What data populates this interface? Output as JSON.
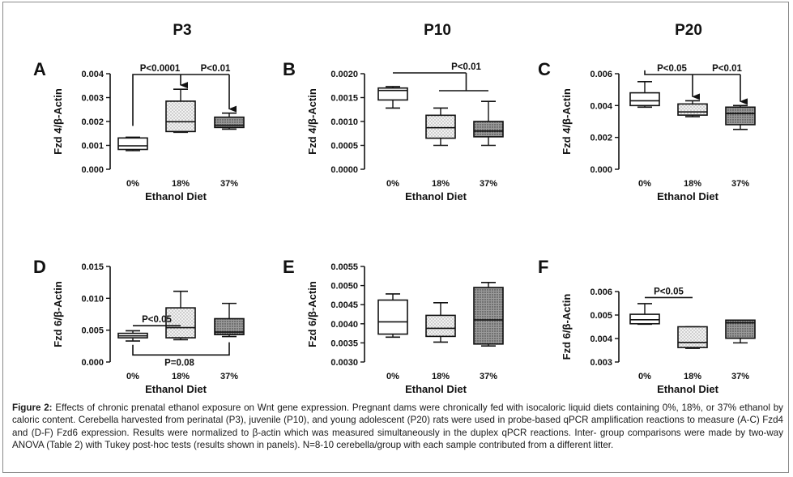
{
  "figure": {
    "column_titles": [
      "P3",
      "P10",
      "P20"
    ],
    "caption_label": "Figure 2:",
    "caption_text": " Effects of chronic prenatal ethanol exposure on Wnt gene expression. Pregnant dams were chronically fed with isocaloric liquid diets containing 0%, 18%, or 37% ethanol by caloric content. Cerebella harvested from perinatal (P3), juvenile (P10), and young adolescent (P20) rats were used in probe-based qPCR amplification reactions to measure (A-C) Fzd4 and (D-F) Fzd6 expression. Results were normalized to β-actin which was measured simultaneously in the duplex qPCR reactions. Inter- group comparisons were made by two-way ANOVA (Table 2) with Tukey post-hoc tests (results shown in panels). N=8-10 cerebella/group with each sample contributed from a different litter."
  },
  "colors": {
    "box_0": "#ffffff",
    "box_18": "#dcdcdc",
    "box_37": "#8e8e8e",
    "ink": "#111111"
  },
  "chart_data": [
    {
      "panel": "A",
      "type": "box",
      "xlabel": "Ethanol Diet",
      "ylabel": "Fzd 4/β-Actin",
      "categories": [
        "0%",
        "18%",
        "37%"
      ],
      "ylim": [
        0,
        0.004
      ],
      "yticks": [
        "0.000",
        "0.001",
        "0.002",
        "0.003",
        "0.004"
      ],
      "boxes": [
        {
          "min": 0.00078,
          "q1": 0.00083,
          "median": 0.00098,
          "q3": 0.00131,
          "max": 0.00134
        },
        {
          "min": 0.00155,
          "q1": 0.00158,
          "median": 0.00199,
          "q3": 0.00285,
          "max": 0.00335
        },
        {
          "min": 0.00168,
          "q1": 0.00175,
          "median": 0.00184,
          "q3": 0.00218,
          "max": 0.00235
        }
      ],
      "annotations": [
        {
          "text": "P<0.0001",
          "type": "bracket-arrows",
          "from": 0,
          "to": [
            1,
            2
          ]
        },
        {
          "text": "P<0.01",
          "type": "label",
          "at": 2
        }
      ]
    },
    {
      "panel": "B",
      "type": "box",
      "xlabel": "Ethanol Diet",
      "ylabel": "Fzd 4/β-Actin",
      "categories": [
        "0%",
        "18%",
        "37%"
      ],
      "ylim": [
        0,
        0.002
      ],
      "yticks": [
        "0.0000",
        "0.0005",
        "0.0010",
        "0.0015",
        "0.0020"
      ],
      "boxes": [
        {
          "min": 0.00128,
          "q1": 0.00145,
          "median": 0.00165,
          "q3": 0.0017,
          "max": 0.00173
        },
        {
          "min": 0.0005,
          "q1": 0.00065,
          "median": 0.00087,
          "q3": 0.00113,
          "max": 0.00128
        },
        {
          "min": 0.0005,
          "q1": 0.00068,
          "median": 0.0008,
          "q3": 0.001,
          "max": 0.00142
        }
      ],
      "annotations": [
        {
          "text": "P<0.01",
          "type": "bracket-group",
          "from": 0,
          "to": [
            1,
            2
          ]
        }
      ]
    },
    {
      "panel": "C",
      "type": "box",
      "xlabel": "Ethanol Diet",
      "ylabel": "Fzd 4/β-Actin",
      "categories": [
        "0%",
        "18%",
        "37%"
      ],
      "ylim": [
        0,
        0.006
      ],
      "yticks": [
        "0.000",
        "0.002",
        "0.004",
        "0.006"
      ],
      "boxes": [
        {
          "min": 0.0039,
          "q1": 0.004,
          "median": 0.0043,
          "q3": 0.0048,
          "max": 0.0055
        },
        {
          "min": 0.0033,
          "q1": 0.0034,
          "median": 0.0036,
          "q3": 0.0041,
          "max": 0.0043
        },
        {
          "min": 0.0025,
          "q1": 0.0028,
          "median": 0.0035,
          "q3": 0.0039,
          "max": 0.004
        }
      ],
      "annotations": [
        {
          "text": "P<0.05",
          "type": "bracket-arrows",
          "from": 0,
          "to": [
            1,
            2
          ]
        },
        {
          "text": "P<0.01",
          "type": "label",
          "at": 2
        }
      ]
    },
    {
      "panel": "D",
      "type": "box",
      "xlabel": "Ethanol Diet",
      "ylabel": "Fzd 6/β-Actin",
      "categories": [
        "0%",
        "18%",
        "37%"
      ],
      "ylim": [
        0,
        0.015
      ],
      "yticks": [
        "0.000",
        "0.005",
        "0.010",
        "0.015"
      ],
      "boxes": [
        {
          "min": 0.0033,
          "q1": 0.0038,
          "median": 0.0041,
          "q3": 0.0045,
          "max": 0.0049
        },
        {
          "min": 0.0035,
          "q1": 0.0038,
          "median": 0.0054,
          "q3": 0.0085,
          "max": 0.0111
        },
        {
          "min": 0.004,
          "q1": 0.0043,
          "median": 0.0047,
          "q3": 0.0068,
          "max": 0.0092
        }
      ],
      "annotations": [
        {
          "text": "P<0.05",
          "type": "line",
          "from": 0,
          "to": 1
        },
        {
          "text": "P=0.08",
          "type": "under-bracket",
          "from": 0,
          "to": 2
        }
      ]
    },
    {
      "panel": "E",
      "type": "box",
      "xlabel": "Ethanol Diet",
      "ylabel": "Fzd 6/β-Actin",
      "categories": [
        "0%",
        "18%",
        "37%"
      ],
      "ylim": [
        0.003,
        0.0055
      ],
      "yticks": [
        "0.0030",
        "0.0035",
        "0.0040",
        "0.0045",
        "0.0050",
        "0.0055"
      ],
      "boxes": [
        {
          "min": 0.00365,
          "q1": 0.00373,
          "median": 0.00405,
          "q3": 0.00462,
          "max": 0.00478
        },
        {
          "min": 0.00352,
          "q1": 0.00367,
          "median": 0.00388,
          "q3": 0.00422,
          "max": 0.00455
        },
        {
          "min": 0.00342,
          "q1": 0.00347,
          "median": 0.0041,
          "q3": 0.00495,
          "max": 0.00508
        }
      ],
      "annotations": []
    },
    {
      "panel": "F",
      "type": "box",
      "xlabel": "Ethanol Diet",
      "ylabel": "Fzd 6/β-Actin",
      "categories": [
        "0%",
        "18%",
        "37%"
      ],
      "ylim": [
        0.003,
        0.0065
      ],
      "yticks": [
        "0.003",
        "0.004",
        "0.005",
        "0.006"
      ],
      "boxes": [
        {
          "min": 0.00488,
          "q1": 0.0049,
          "median": 0.0051,
          "q3": 0.00537,
          "max": 0.0059
        },
        {
          "min": 0.00368,
          "q1": 0.00372,
          "median": 0.00397,
          "q3": 0.00475,
          "max": 0.00475
        },
        {
          "min": 0.00395,
          "q1": 0.00418,
          "median": 0.00495,
          "q3": 0.00508,
          "max": 0.00508
        }
      ],
      "annotations": [
        {
          "text": "P<0.05",
          "type": "line",
          "from": 0,
          "to": 1
        }
      ]
    }
  ]
}
